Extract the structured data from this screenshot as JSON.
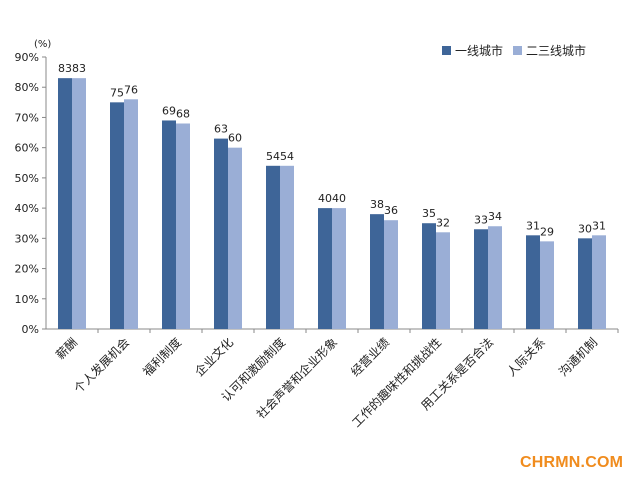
{
  "chart_data": {
    "type": "bar",
    "unit_label": "(%)",
    "ylim": [
      0,
      90
    ],
    "yticks": [
      "0%",
      "10%",
      "20%",
      "30%",
      "40%",
      "50%",
      "60%",
      "70%",
      "80%",
      "90%"
    ],
    "categories": [
      "薪酬",
      "个人发展机会",
      "福利制度",
      "企业文化",
      "认可和激励制度",
      "社会声誉和企业形象",
      "经营业绩",
      "工作的趣味性和挑战性",
      "用工关系是否合法",
      "人际关系",
      "沟通机制"
    ],
    "series": [
      {
        "name": "一线城市",
        "color": "#3e6598",
        "values": [
          83,
          75,
          69,
          63,
          54,
          40,
          38,
          35,
          33,
          31,
          30
        ]
      },
      {
        "name": "二三线城市",
        "color": "#9aaed6",
        "values": [
          83,
          76,
          68,
          60,
          54,
          40,
          36,
          32,
          34,
          29,
          31
        ]
      }
    ],
    "grid": false,
    "legend_position": "top-right"
  },
  "watermark": "CHRMN.COM"
}
